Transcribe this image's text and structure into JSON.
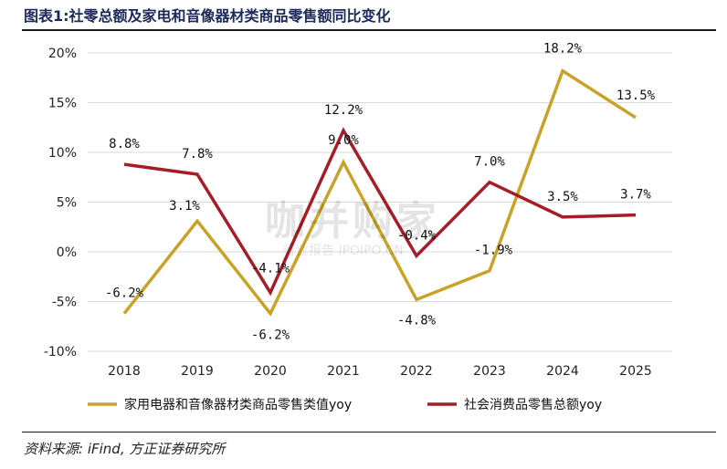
{
  "title": "图表1:社零总额及家电和音像器材类商品零售额同比变化",
  "source": "资料来源: iFind, 方正证券研究所",
  "watermark": {
    "main": "咖并购家",
    "sub": "行业报告 IPOIPO.CN"
  },
  "colors": {
    "series_appliance": "#C9A227",
    "series_retail": "#A51D26",
    "grid": "#d9d9d9",
    "axis_text": "#222222"
  },
  "chart_data": {
    "type": "line",
    "categories": [
      "2018",
      "2019",
      "2020",
      "2021",
      "2022",
      "2023",
      "2024",
      "2025"
    ],
    "ylim": [
      -10,
      20
    ],
    "yticks": [
      -10,
      -5,
      0,
      5,
      10,
      15,
      20
    ],
    "ytick_labels": [
      "-10%",
      "-5%",
      "0%",
      "5%",
      "10%",
      "15%",
      "20%"
    ],
    "grid": "horizontal",
    "legend_position": "bottom",
    "series": [
      {
        "name": "家用电器和音像器材类商品零售类值yoy",
        "values": [
          -6.2,
          3.1,
          -6.2,
          9.0,
          -4.8,
          -1.9,
          18.2,
          13.5
        ],
        "labels": [
          "-6.2%",
          "3.1%",
          "-6.2%",
          "9.0%",
          "-4.8%",
          "-1.9%",
          "18.2%",
          "13.5%"
        ]
      },
      {
        "name": "社会消费品零售总额yoy",
        "values": [
          8.8,
          7.8,
          -4.1,
          12.2,
          -0.4,
          7.0,
          3.5,
          3.7
        ],
        "labels": [
          "8.8%",
          "7.8%",
          "-4.1%",
          "12.2%",
          "-0.4%",
          "7.0%",
          "3.5%",
          "3.7%"
        ]
      }
    ]
  }
}
